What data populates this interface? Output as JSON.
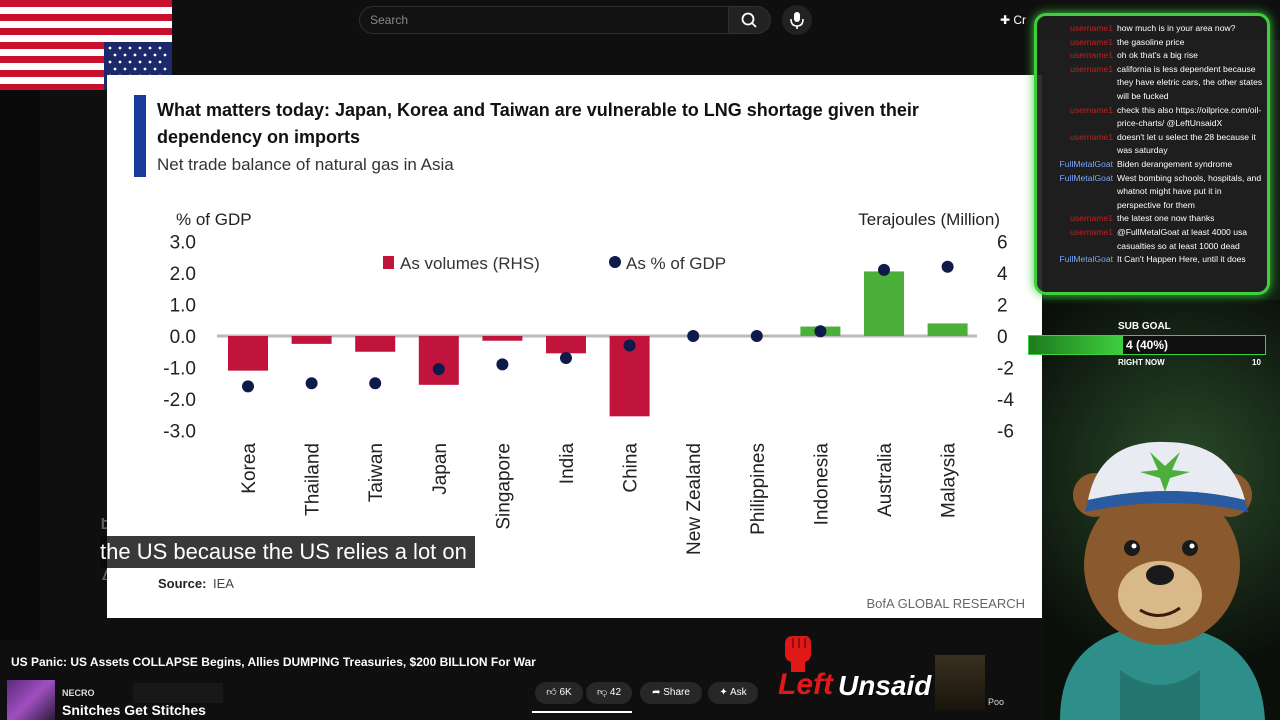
{
  "topbar": {
    "search_placeholder": "Search",
    "create_label": "Cr"
  },
  "chart_data": {
    "type": "bar",
    "title": "What matters today: Japan, Korea and Taiwan are vulnerable to LNG shortage given their dependency on imports",
    "title_line1": "What matters today: Japan, Korea and Taiwan are vulnerable to LNG shortage given their",
    "title_line2": "dependency on imports",
    "subtitle": "Net trade balance of natural gas in Asia",
    "ylabel_left": "% of GDP",
    "ylabel_right": "Terajoules (Million)",
    "ylim_left": [
      -3.0,
      3.0
    ],
    "ylim_right": [
      -6,
      6
    ],
    "yticks_left": [
      "3.0",
      "2.0",
      "1.0",
      "0.0",
      "-1.0",
      "-2.0",
      "-3.0"
    ],
    "yticks_right": [
      "6",
      "4",
      "2",
      "0",
      "-2",
      "-4",
      "-6"
    ],
    "categories": [
      "Korea",
      "Thailand",
      "Taiwan",
      "Japan",
      "Singapore",
      "India",
      "China",
      "New Zealand",
      "Philippines",
      "Indonesia",
      "Australia",
      "Malaysia"
    ],
    "series": [
      {
        "name": "As volumes (RHS)",
        "axis": "right",
        "kind": "bar",
        "values": [
          -2.2,
          -0.5,
          -1.0,
          -3.1,
          -0.3,
          -1.1,
          -5.1,
          0,
          0,
          0.6,
          4.1,
          0.8
        ]
      },
      {
        "name": "As % of GDP",
        "axis": "left",
        "kind": "dot",
        "values": [
          -1.6,
          -1.5,
          -1.5,
          -1.05,
          -0.9,
          -0.7,
          -0.3,
          0.0,
          0.0,
          0.15,
          2.1,
          2.2
        ]
      }
    ],
    "colors": {
      "negative": "#c0143c",
      "positive": "#4caf3a",
      "dot": "#0d1a4a",
      "accent": "#1a3a9c"
    },
    "source_label": "Source:",
    "source": "IEA",
    "brand": "BofA GLOBAL RESEARCH"
  },
  "captions": {
    "line_prev": "But this situation isn't good at all for",
    "line_main": "the US because the US relies a lot on",
    "line_next": "Asia."
  },
  "video": {
    "title": "US Panic: US Assets COLLAPSE Begins, Allies DUMPING Treasuries, $200 BILLION For War",
    "channel_tag": "NECRO",
    "channel_name": "Snitches Get Stitches",
    "likes": "6K",
    "dislikes": "42",
    "share_label": "Share",
    "ask_label": "Ask",
    "logo_left": "Left",
    "logo_right": "Unsaid",
    "side_text": "Poo"
  },
  "chat": [
    {
      "user": "username1",
      "text": "how much is in your area now?",
      "blue": false
    },
    {
      "user": "username1",
      "text": "the gasoline price",
      "blue": false
    },
    {
      "user": "username1",
      "text": "oh ok that's a big rise",
      "blue": false
    },
    {
      "user": "username1",
      "text": "california is less dependent because they have eletric cars, the other states will be fucked",
      "blue": false
    },
    {
      "user": "username1",
      "text": "check this also https://oilprice.com/oil-price-charts/ @LeftUnsaidX",
      "blue": false
    },
    {
      "user": "username1",
      "text": "doesn't let u select the 28 because it was saturday",
      "blue": false
    },
    {
      "user": "FullMetalGoat",
      "text": "Biden derangement syndrome",
      "blue": true
    },
    {
      "user": "FullMetalGoat",
      "text": "West bombing schools, hospitals, and whatnot might have put it in perspective for them",
      "blue": true
    },
    {
      "user": "username1",
      "text": "the latest one now thanks",
      "blue": false
    },
    {
      "user": "username1",
      "text": "@FullMetalGoat at least 4000 usa casualties so at least 1000 dead",
      "blue": false
    },
    {
      "user": "FullMetalGoat",
      "text": "It Can't Happen Here, until it does",
      "blue": true
    }
  ],
  "sub_goal": {
    "label": "SUB GOAL",
    "text": "4 (40%)",
    "progress": 0.4,
    "sub_label": "RIGHT NOW",
    "target": "10"
  }
}
